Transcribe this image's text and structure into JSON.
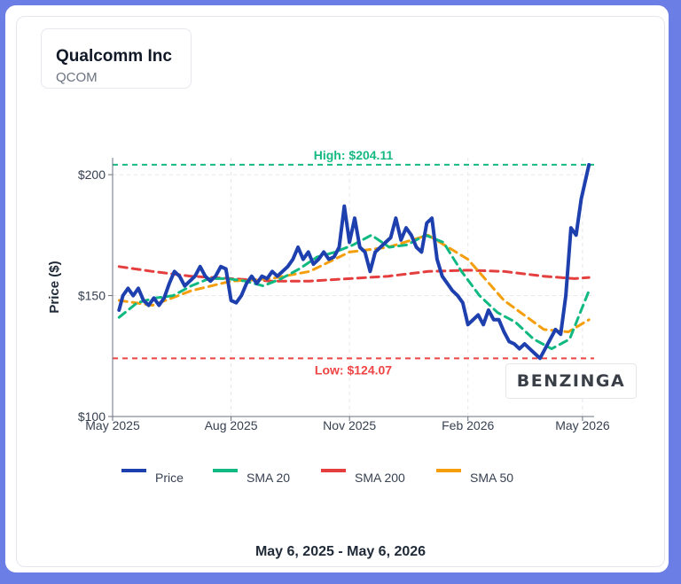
{
  "header": {
    "company": "Qualcomm Inc",
    "ticker": "QCOM"
  },
  "footer": {
    "date_range": "May 6, 2025 - May 6, 2026"
  },
  "watermark": "BENZINGA",
  "chart_data": {
    "type": "line",
    "ylabel": "Price ($)",
    "ylim": [
      100,
      207
    ],
    "y_ticks": [
      100,
      150,
      200
    ],
    "y_tick_labels": [
      "$100",
      "$150",
      "$200"
    ],
    "x_ticks": [
      {
        "date": "2025-05-01",
        "label": "May 2025"
      },
      {
        "date": "2025-08-01",
        "label": "Aug 2025"
      },
      {
        "date": "2025-11-01",
        "label": "Nov 2025"
      },
      {
        "date": "2026-02-01",
        "label": "Feb 2026"
      },
      {
        "date": "2026-05-01",
        "label": "May 2026"
      }
    ],
    "xlim": [
      "2025-05-01",
      "2026-05-10"
    ],
    "high": {
      "value": 204.11,
      "label": "High: $204.11",
      "color": "#16b981"
    },
    "low": {
      "value": 124.07,
      "label": "Low: $124.07",
      "color": "#ef4444"
    },
    "grid": true,
    "legend_position": "bottom",
    "series": [
      {
        "name": "Price",
        "color": "#1e40af",
        "points": [
          [
            "2025-05-06",
            144
          ],
          [
            "2025-05-09",
            150
          ],
          [
            "2025-05-13",
            153
          ],
          [
            "2025-05-17",
            150
          ],
          [
            "2025-05-21",
            153
          ],
          [
            "2025-05-25",
            148
          ],
          [
            "2025-05-29",
            146
          ],
          [
            "2025-06-02",
            149
          ],
          [
            "2025-06-06",
            146
          ],
          [
            "2025-06-10",
            149
          ],
          [
            "2025-06-14",
            155
          ],
          [
            "2025-06-18",
            160
          ],
          [
            "2025-06-22",
            158
          ],
          [
            "2025-06-26",
            154
          ],
          [
            "2025-06-30",
            156
          ],
          [
            "2025-07-04",
            158
          ],
          [
            "2025-07-08",
            162
          ],
          [
            "2025-07-12",
            158
          ],
          [
            "2025-07-16",
            156
          ],
          [
            "2025-07-20",
            158
          ],
          [
            "2025-07-24",
            162
          ],
          [
            "2025-07-28",
            161
          ],
          [
            "2025-08-01",
            148
          ],
          [
            "2025-08-05",
            147
          ],
          [
            "2025-08-09",
            150
          ],
          [
            "2025-08-13",
            155
          ],
          [
            "2025-08-17",
            158
          ],
          [
            "2025-08-21",
            155
          ],
          [
            "2025-08-25",
            158
          ],
          [
            "2025-08-29",
            157
          ],
          [
            "2025-09-02",
            160
          ],
          [
            "2025-09-06",
            158
          ],
          [
            "2025-09-10",
            160
          ],
          [
            "2025-09-14",
            162
          ],
          [
            "2025-09-18",
            165
          ],
          [
            "2025-09-22",
            170
          ],
          [
            "2025-09-26",
            165
          ],
          [
            "2025-09-30",
            168
          ],
          [
            "2025-10-04",
            163
          ],
          [
            "2025-10-08",
            165
          ],
          [
            "2025-10-12",
            168
          ],
          [
            "2025-10-16",
            165
          ],
          [
            "2025-10-20",
            166
          ],
          [
            "2025-10-24",
            170
          ],
          [
            "2025-10-28",
            187
          ],
          [
            "2025-11-01",
            172
          ],
          [
            "2025-11-05",
            182
          ],
          [
            "2025-11-09",
            170
          ],
          [
            "2025-11-13",
            168
          ],
          [
            "2025-11-17",
            160
          ],
          [
            "2025-11-21",
            168
          ],
          [
            "2025-11-25",
            170
          ],
          [
            "2025-11-29",
            172
          ],
          [
            "2025-12-03",
            174
          ],
          [
            "2025-12-07",
            182
          ],
          [
            "2025-12-11",
            173
          ],
          [
            "2025-12-15",
            178
          ],
          [
            "2025-12-19",
            175
          ],
          [
            "2025-12-23",
            170
          ],
          [
            "2025-12-27",
            168
          ],
          [
            "2025-12-31",
            180
          ],
          [
            "2026-01-04",
            182
          ],
          [
            "2026-01-08",
            165
          ],
          [
            "2026-01-12",
            158
          ],
          [
            "2026-01-16",
            155
          ],
          [
            "2026-01-20",
            152
          ],
          [
            "2026-01-24",
            150
          ],
          [
            "2026-01-28",
            147
          ],
          [
            "2026-02-01",
            138
          ],
          [
            "2026-02-05",
            140
          ],
          [
            "2026-02-09",
            142
          ],
          [
            "2026-02-13",
            138
          ],
          [
            "2026-02-17",
            144
          ],
          [
            "2026-02-21",
            140
          ],
          [
            "2026-02-25",
            140
          ],
          [
            "2026-03-01",
            135
          ],
          [
            "2026-03-05",
            131
          ],
          [
            "2026-03-09",
            130
          ],
          [
            "2026-03-13",
            128
          ],
          [
            "2026-03-17",
            130
          ],
          [
            "2026-03-21",
            128
          ],
          [
            "2026-03-25",
            126
          ],
          [
            "2026-03-29",
            124.07
          ],
          [
            "2026-04-02",
            128
          ],
          [
            "2026-04-06",
            132
          ],
          [
            "2026-04-10",
            136
          ],
          [
            "2026-04-14",
            134
          ],
          [
            "2026-04-18",
            150
          ],
          [
            "2026-04-22",
            178
          ],
          [
            "2026-04-26",
            175
          ],
          [
            "2026-04-30",
            190
          ],
          [
            "2026-05-06",
            204.11
          ]
        ]
      },
      {
        "name": "SMA 20",
        "color": "#10b981",
        "points": [
          [
            "2025-05-06",
            141
          ],
          [
            "2025-05-20",
            147
          ],
          [
            "2025-06-03",
            149
          ],
          [
            "2025-06-17",
            150
          ],
          [
            "2025-07-01",
            154
          ],
          [
            "2025-07-15",
            157
          ],
          [
            "2025-07-29",
            157
          ],
          [
            "2025-08-12",
            156
          ],
          [
            "2025-08-26",
            154
          ],
          [
            "2025-09-09",
            157
          ],
          [
            "2025-09-23",
            161
          ],
          [
            "2025-10-07",
            166
          ],
          [
            "2025-10-21",
            168
          ],
          [
            "2025-11-04",
            171
          ],
          [
            "2025-11-18",
            175
          ],
          [
            "2025-12-02",
            170
          ],
          [
            "2025-12-16",
            171
          ],
          [
            "2025-12-30",
            175
          ],
          [
            "2026-01-13",
            172
          ],
          [
            "2026-01-27",
            160
          ],
          [
            "2026-02-10",
            150
          ],
          [
            "2026-02-24",
            143
          ],
          [
            "2026-03-10",
            139
          ],
          [
            "2026-03-24",
            132
          ],
          [
            "2026-04-07",
            128
          ],
          [
            "2026-04-21",
            132
          ],
          [
            "2026-05-06",
            152
          ]
        ]
      },
      {
        "name": "SMA 200",
        "color": "#e53e3e",
        "points": [
          [
            "2025-05-06",
            162
          ],
          [
            "2025-06-01",
            160
          ],
          [
            "2025-07-01",
            158
          ],
          [
            "2025-08-01",
            157
          ],
          [
            "2025-09-01",
            156
          ],
          [
            "2025-10-01",
            156
          ],
          [
            "2025-11-01",
            157
          ],
          [
            "2025-12-01",
            158
          ],
          [
            "2026-01-01",
            160
          ],
          [
            "2026-02-01",
            160.5
          ],
          [
            "2026-03-01",
            160
          ],
          [
            "2026-04-01",
            158
          ],
          [
            "2026-04-25",
            157
          ],
          [
            "2026-05-06",
            157.5
          ]
        ]
      },
      {
        "name": "SMA 50",
        "color": "#f59e0b",
        "points": [
          [
            "2025-05-06",
            148
          ],
          [
            "2025-06-01",
            146
          ],
          [
            "2025-07-01",
            152
          ],
          [
            "2025-08-01",
            156
          ],
          [
            "2025-09-01",
            157
          ],
          [
            "2025-10-01",
            160
          ],
          [
            "2025-11-01",
            168
          ],
          [
            "2025-12-01",
            170
          ],
          [
            "2026-01-01",
            175
          ],
          [
            "2026-02-01",
            165
          ],
          [
            "2026-03-01",
            148
          ],
          [
            "2026-04-01",
            136
          ],
          [
            "2026-04-20",
            135
          ],
          [
            "2026-05-06",
            140
          ]
        ]
      }
    ]
  }
}
